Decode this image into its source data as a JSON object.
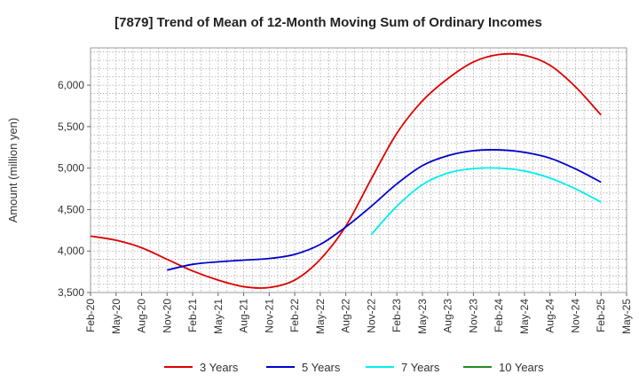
{
  "chart_data": {
    "type": "line",
    "title": "[7879]  Trend of Mean of 12-Month Moving Sum of Ordinary Incomes",
    "xlabel": "",
    "ylabel": "Amount (million yen)",
    "ylim": [
      3500,
      6450
    ],
    "yticks": [
      3500,
      4000,
      4500,
      5000,
      5500,
      6000
    ],
    "ytick_labels": [
      "3,500",
      "4,000",
      "4,500",
      "5,000",
      "5,500",
      "6,000"
    ],
    "categories": [
      "Feb-20",
      "May-20",
      "Aug-20",
      "Nov-20",
      "Feb-21",
      "May-21",
      "Aug-21",
      "Nov-21",
      "Feb-22",
      "May-22",
      "Aug-22",
      "Nov-22",
      "Feb-23",
      "May-23",
      "Aug-23",
      "Nov-23",
      "Feb-24",
      "May-24",
      "Aug-24",
      "Nov-24",
      "Feb-25",
      "May-25"
    ],
    "grid": true,
    "legend_position": "bottom",
    "series": [
      {
        "name": "3 Years",
        "color": "#dd0000",
        "values": [
          4180,
          4130,
          4040,
          3900,
          3760,
          3650,
          3570,
          3560,
          3650,
          3900,
          4300,
          4870,
          5420,
          5810,
          6080,
          6280,
          6370,
          6360,
          6240,
          5980,
          5640,
          null
        ]
      },
      {
        "name": "5 Years",
        "color": "#0000cc",
        "values": [
          null,
          null,
          null,
          3770,
          3840,
          3870,
          3890,
          3910,
          3960,
          4080,
          4290,
          4540,
          4810,
          5030,
          5150,
          5210,
          5220,
          5190,
          5120,
          4990,
          4830,
          null
        ]
      },
      {
        "name": "7 Years",
        "color": "#00eeee",
        "values": [
          null,
          null,
          null,
          null,
          null,
          null,
          null,
          null,
          null,
          null,
          null,
          4200,
          4540,
          4800,
          4940,
          4995,
          5000,
          4965,
          4880,
          4750,
          4590,
          null
        ]
      },
      {
        "name": "10 Years",
        "color": "#228b22",
        "values": [
          null,
          null,
          null,
          null,
          null,
          null,
          null,
          null,
          null,
          null,
          null,
          null,
          null,
          null,
          null,
          null,
          null,
          null,
          null,
          null,
          null,
          null
        ]
      }
    ]
  }
}
